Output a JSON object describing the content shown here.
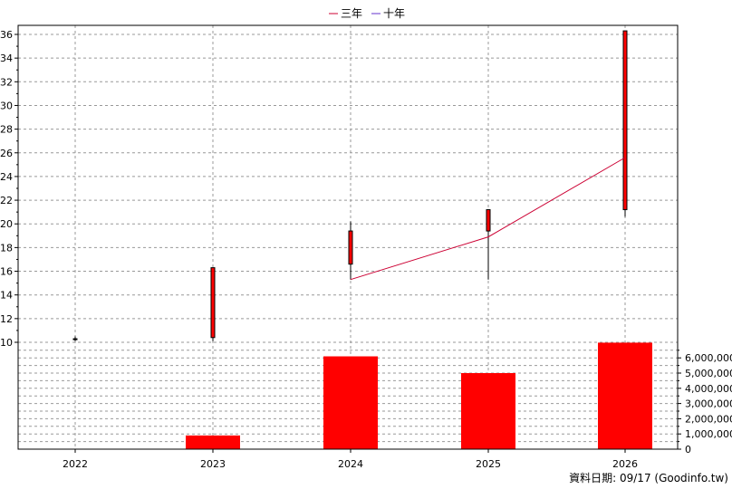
{
  "chart_data": [
    {
      "type": "candlestick",
      "x": [
        "2022",
        "2023",
        "2024",
        "2025",
        "2026"
      ],
      "ohlc": [
        {
          "open": 10.3,
          "high": 10.5,
          "low": 10.1,
          "close": 10.3
        },
        {
          "open": 10.4,
          "high": 16.3,
          "low": 10.1,
          "close": 16.3
        },
        {
          "open": 16.6,
          "high": 20.2,
          "low": 15.3,
          "close": 19.4
        },
        {
          "open": 19.4,
          "high": 21.2,
          "low": 15.3,
          "close": 21.2
        },
        {
          "open": 21.2,
          "high": 36.3,
          "low": 20.6,
          "close": 36.3
        }
      ],
      "candle_color": "#ff0000",
      "series": [
        {
          "name": "三年",
          "color": "#cc0033",
          "values": [
            null,
            null,
            15.3,
            18.9,
            25.6
          ]
        },
        {
          "name": "十年",
          "color": "#6633cc",
          "values": [
            null,
            null,
            null,
            null,
            null
          ]
        }
      ],
      "yticks": [
        "10",
        "12",
        "14",
        "16",
        "18",
        "20",
        "22",
        "24",
        "26",
        "28",
        "30",
        "32",
        "34",
        "36"
      ],
      "ylim": [
        10,
        37
      ],
      "grid": true,
      "legend": "top-center"
    },
    {
      "type": "bar",
      "categories": [
        "2022",
        "2023",
        "2024",
        "2025",
        "2026"
      ],
      "values": [
        0,
        900000,
        6100000,
        5000000,
        7000000
      ],
      "color": "#ff0000",
      "yticks": [
        "0",
        "1,000,000",
        "2,000,000",
        "3,000,000",
        "4,000,000",
        "5,000,000",
        "6,000,000"
      ],
      "ylim": [
        0,
        7000000
      ],
      "grid": true
    }
  ],
  "footer": {
    "text": "資料日期: 09/17  (Goodinfo.tw)"
  }
}
